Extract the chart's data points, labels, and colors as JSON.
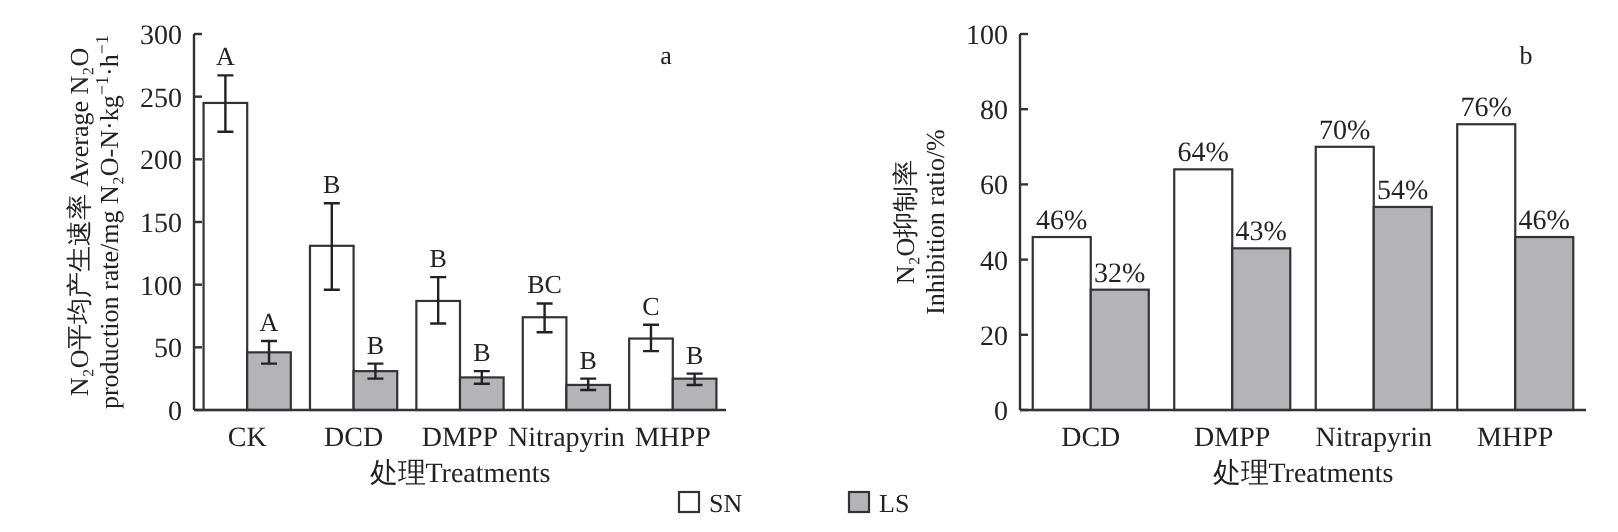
{
  "chart_data": [
    {
      "type": "bar",
      "title": "a",
      "xlabel": "处理Treatments",
      "ylabel": "N₂O平均产生速率 Average N₂O\nproduction rate/mg N₂O-N·kg$^{−1}$·h$^{−1}$",
      "categories": [
        "CK",
        "DCD",
        "DMPP",
        "Nitrapyrin",
        "MHPP"
      ],
      "series": [
        {
          "name": "SN",
          "color": "#ffffff",
          "values": [
            245,
            131,
            87,
            74,
            57
          ],
          "errors": [
            [
              222,
              267
            ],
            [
              96,
              165
            ],
            [
              69,
              106
            ],
            [
              62,
              85
            ],
            [
              47,
              68
            ]
          ]
        },
        {
          "name": "LS",
          "color": "#b4b4b8",
          "values": [
            46,
            31,
            26,
            20,
            25
          ],
          "errors": [
            [
              37,
              55
            ],
            [
              25,
              37
            ],
            [
              21,
              31
            ],
            [
              16,
              25
            ],
            [
              20,
              29
            ]
          ]
        }
      ],
      "annotations": [
        {
          "text": "A",
          "x": "CK",
          "y": 245
        },
        {
          "text": "B",
          "x": "DCD",
          "y": 131
        },
        {
          "text": "B",
          "x": "DMPP",
          "y": 87
        },
        {
          "text": "BC",
          "x": "Nitrapyrin",
          "y": 74
        },
        {
          "text": "C",
          "x": "MHPP",
          "y": 57
        },
        {
          "text": "A",
          "x": "CK",
          "y": 46
        },
        {
          "text": "B",
          "x": "DCD",
          "y": 31
        },
        {
          "text": "B",
          "x": "DMPP",
          "y": 26
        },
        {
          "text": "B",
          "x": "Nitrapyrin",
          "y": 20
        },
        {
          "text": "B",
          "x": "MHPP",
          "y": 25
        }
      ],
      "ylim": [
        0,
        300
      ],
      "yticks": [
        0,
        50,
        100,
        150,
        200,
        250,
        300
      ],
      "legend": "bottom"
    },
    {
      "type": "bar",
      "title": "b",
      "xlabel": "处理Treatments",
      "ylabel": "N₂O抑制率\nInhibition ratio/%",
      "categories": [
        "DCD",
        "DMPP",
        "Nitrapyrin",
        "MHPP"
      ],
      "series": [
        {
          "color": "#ffffff",
          "values": [
            46,
            64,
            70,
            76
          ],
          "value_labels": [
            "46%",
            "64%",
            "70%",
            "76%"
          ]
        },
        {
          "color": "#b4b4b8",
          "values": [
            32,
            43,
            54,
            46
          ],
          "value_labels": [
            "32%",
            "43%",
            "54%",
            "46%"
          ]
        }
      ],
      "ylim": [
        0,
        100
      ],
      "yticks": [
        0,
        20,
        40,
        60,
        80,
        100
      ]
    }
  ]
}
